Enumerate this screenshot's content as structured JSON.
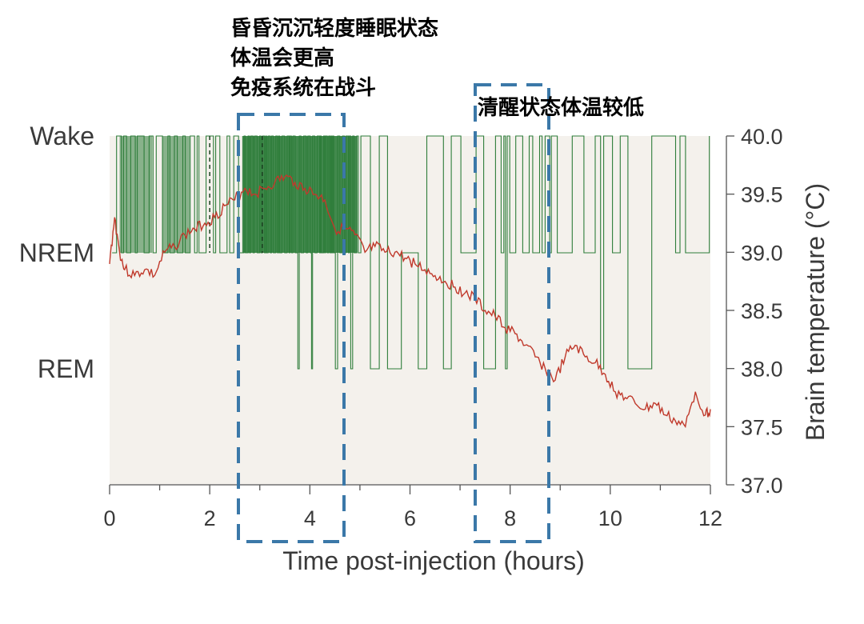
{
  "chart_data": {
    "type": "line",
    "xlabel": "Time post-injection (hours)",
    "ylabel_right": "Brain temperature (°C)",
    "xlim": [
      0,
      12
    ],
    "x_ticks": [
      "0",
      "2",
      "4",
      "6",
      "8",
      "10",
      "12"
    ],
    "y_right_lim": [
      37.0,
      40.0
    ],
    "y_right_ticks": [
      "40.0",
      "39.5",
      "39.0",
      "38.5",
      "38.0",
      "37.5",
      "37.0"
    ],
    "state_labels": [
      "Wake",
      "NREM",
      "REM"
    ],
    "dashed_markers_hours": [
      2.0,
      3.05
    ],
    "colors": {
      "hypnogram": "#2e7d3a",
      "hypnogram_fill": "#2f7d3c",
      "temperature": "#c0392b",
      "annotation_box": "#3b78a8",
      "background": "#f4f1ec"
    },
    "series": [
      {
        "type": "line",
        "x": [
          0.0,
          0.1,
          0.2,
          0.3,
          0.5,
          0.7,
          0.9,
          1.1,
          1.3,
          1.5,
          1.7,
          1.9,
          2.1,
          2.3,
          2.5,
          2.7,
          2.9,
          3.1,
          3.3,
          3.5,
          3.7,
          3.9,
          4.1,
          4.3,
          4.5,
          4.7,
          4.9,
          5.1,
          5.3,
          5.5,
          5.7,
          5.9,
          6.1,
          6.3,
          6.5,
          6.7,
          6.9,
          7.1,
          7.3,
          7.5,
          7.7,
          7.9,
          8.1,
          8.3,
          8.5,
          8.7,
          8.9,
          9.1,
          9.3,
          9.5,
          9.7,
          9.9,
          10.1,
          10.3,
          10.5,
          10.7,
          10.9,
          11.1,
          11.3,
          11.5,
          11.7,
          11.9,
          12.0
        ],
        "y": [
          38.9,
          39.3,
          39.0,
          38.85,
          38.8,
          38.85,
          38.8,
          39.0,
          39.05,
          39.15,
          39.2,
          39.25,
          39.3,
          39.4,
          39.45,
          39.55,
          39.5,
          39.55,
          39.6,
          39.65,
          39.6,
          39.55,
          39.5,
          39.45,
          39.2,
          39.2,
          39.15,
          39.0,
          39.05,
          39.0,
          39.0,
          38.95,
          38.9,
          38.85,
          38.8,
          38.75,
          38.7,
          38.65,
          38.6,
          38.5,
          38.45,
          38.35,
          38.3,
          38.2,
          38.1,
          38.0,
          37.9,
          38.1,
          38.2,
          38.1,
          38.05,
          37.95,
          37.8,
          37.75,
          37.7,
          37.65,
          37.7,
          37.6,
          37.55,
          37.5,
          37.8,
          37.6,
          37.65
        ]
      }
    ]
  },
  "annotations": {
    "box1": [
      "昏昏沉沉轻度睡眠状态",
      "体温会更高",
      "免疫系统在战斗"
    ],
    "box2": [
      "清醒状态体温较低"
    ]
  }
}
